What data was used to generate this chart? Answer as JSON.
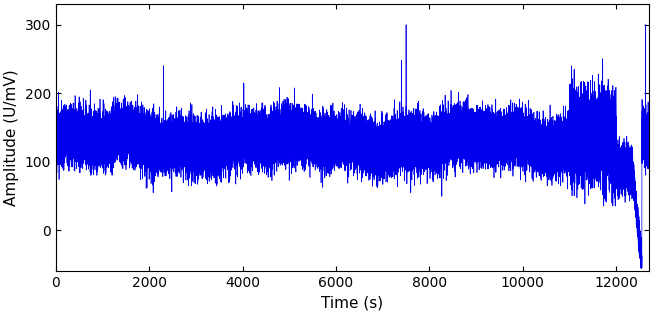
{
  "title": "",
  "xlabel": "Time (s)",
  "ylabel": "Amplitude (U/mV)",
  "line_color": "#0000EE",
  "line_width": 0.5,
  "x_min": 0,
  "x_max": 12700,
  "y_min": -60,
  "y_max": 330,
  "x_ticks": [
    0,
    2000,
    4000,
    6000,
    8000,
    10000,
    12000
  ],
  "y_ticks": [
    0,
    100,
    200,
    300
  ],
  "base_mean": 130,
  "base_std": 18,
  "n_points": 50000,
  "seed": 42,
  "figsize": [
    6.53,
    3.15
  ],
  "dpi": 100
}
